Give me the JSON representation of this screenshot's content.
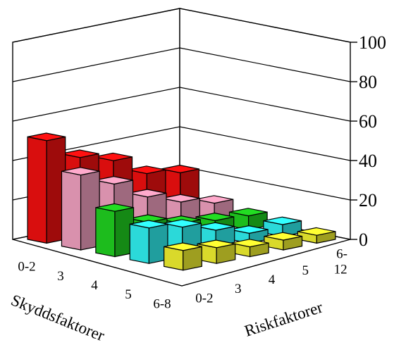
{
  "chart_data": {
    "type": "bar3d",
    "title": "",
    "zlim": [
      0,
      100
    ],
    "z_ticks": [
      "0",
      "20",
      "40",
      "60",
      "80",
      "100"
    ],
    "x_axis_label": "Riskfaktorer",
    "y_axis_label": "Skyddsfaktorer",
    "x_categories": [
      "0-2",
      "3",
      "4",
      "5",
      "6-12"
    ],
    "y_categories": [
      "0-2",
      "3",
      "4",
      "5",
      "6-8"
    ],
    "grid": true,
    "bar_color_by_risk": [
      "#ffff33",
      "#33ffff",
      "#22dd22",
      "#ffaacc",
      "#ff1111"
    ],
    "values": [
      [
        10,
        18,
        23,
        38,
        52
      ],
      [
        8,
        15,
        14,
        30,
        40
      ],
      [
        5,
        10,
        10,
        20,
        35
      ],
      [
        5,
        5,
        8,
        14,
        25
      ],
      [
        4,
        6,
        7,
        10,
        22
      ]
    ]
  }
}
